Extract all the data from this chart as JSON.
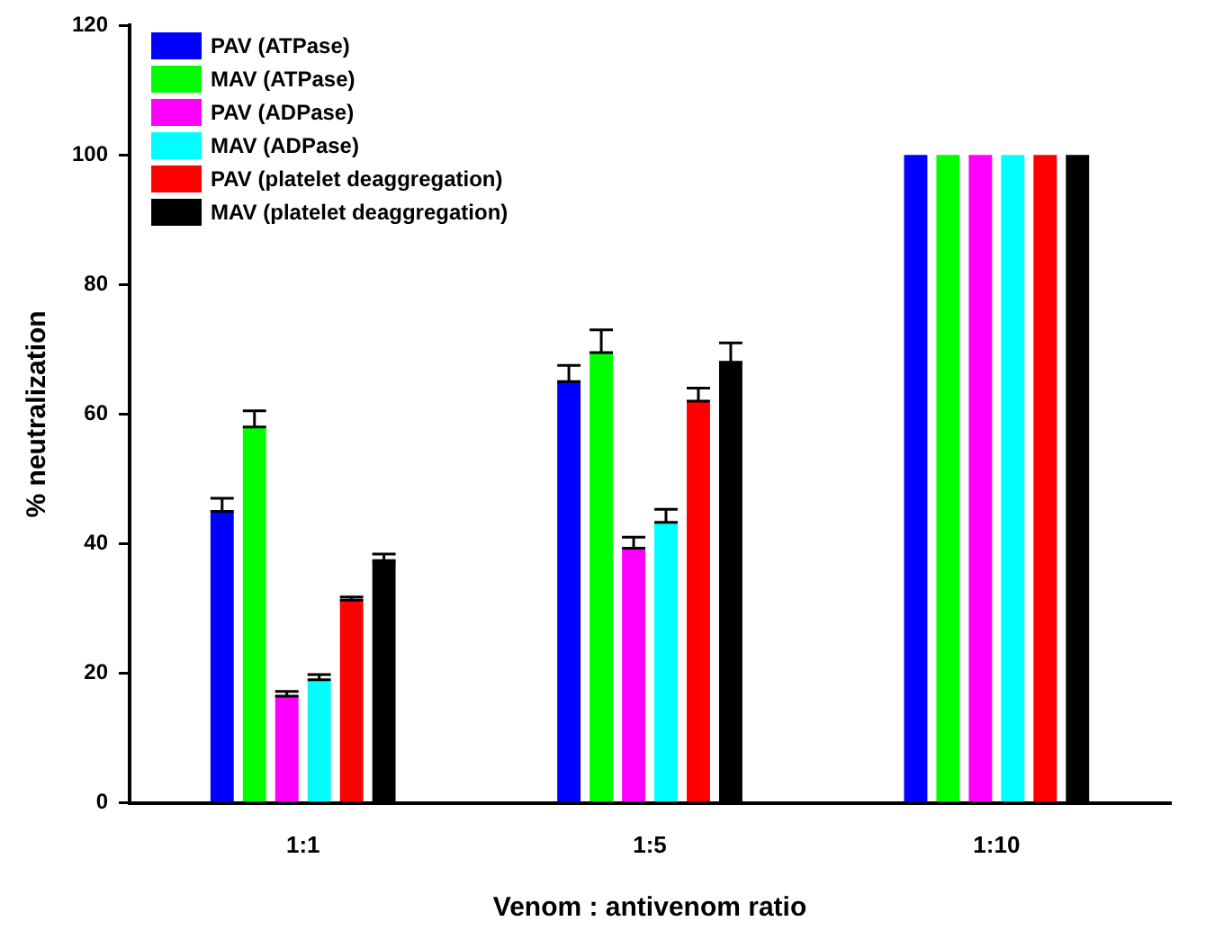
{
  "chart_data": {
    "type": "bar",
    "xlabel": "Venom : antivenom ratio",
    "ylabel": "% neutralization",
    "categories": [
      "1:1",
      "1:5",
      "1:10"
    ],
    "ylim": [
      0,
      120
    ],
    "yticks": [
      0,
      20,
      40,
      60,
      80,
      100,
      120
    ],
    "grid": false,
    "legend": "top left",
    "series": [
      {
        "name": "PAV (ATPase)",
        "color": "#0000ff",
        "values": [
          45,
          65,
          100
        ],
        "errors": [
          [
            45,
            47
          ],
          [
            65,
            67.5
          ],
          null
        ]
      },
      {
        "name": "MAV (ATPase)",
        "color": "#00ff00",
        "values": [
          58,
          69.5,
          100
        ],
        "errors": [
          [
            58,
            60.5
          ],
          [
            69.5,
            73
          ],
          null
        ]
      },
      {
        "name": "PAV (ADPase)",
        "color": "#ff00ff",
        "values": [
          16.5,
          39.3,
          100
        ],
        "errors": [
          [
            16.5,
            17.2
          ],
          [
            39.3,
            41
          ],
          null
        ]
      },
      {
        "name": "MAV (ADPase)",
        "color": "#00ffff",
        "values": [
          19,
          43.3,
          100
        ],
        "errors": [
          [
            19,
            19.8
          ],
          [
            43.3,
            45.3
          ],
          null
        ]
      },
      {
        "name": "PAV (platelet deaggregation)",
        "color": "#ff0000",
        "values": [
          31.3,
          62,
          100
        ],
        "errors": [
          [
            31.3,
            31.8
          ],
          [
            62,
            64
          ],
          null
        ]
      },
      {
        "name": "MAV (platelet deaggregation)",
        "color": "#000000",
        "values": [
          37.4,
          68,
          100
        ],
        "errors": [
          [
            37.4,
            38.4
          ],
          [
            68,
            71
          ],
          null
        ]
      }
    ]
  }
}
